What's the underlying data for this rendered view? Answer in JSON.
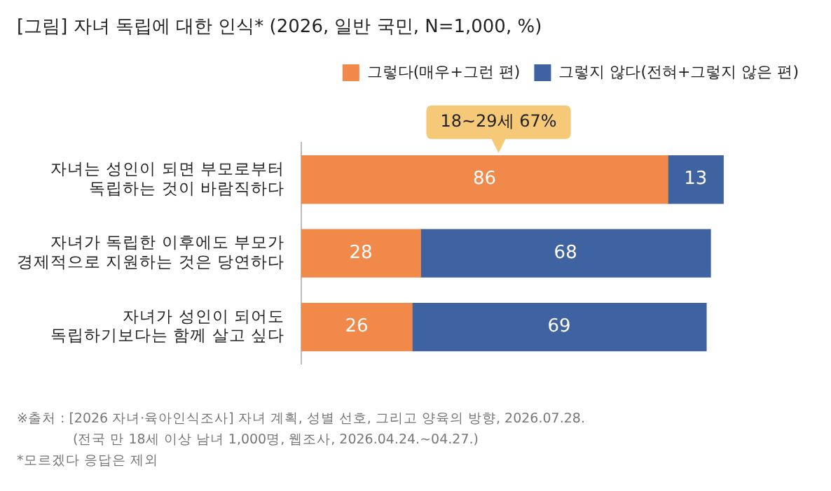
{
  "chart_data": {
    "type": "bar",
    "orientation": "horizontal",
    "stacked": true,
    "title": "[그림] 자녀 독립에 대한 인식* (2026, 일반 국민, N=1,000, %)",
    "categories": [
      "자녀는 성인이 되면 부모로부터\n독립하는 것이 바람직하다",
      "자녀가 독립한 이후에도 부모가\n경제적으로 지원하는 것은 당연하다",
      "자녀가 성인이 되어도\n독립하기보다는 함께 살고 싶다"
    ],
    "series": [
      {
        "name": "그렇다(매우+그런 편)",
        "color": "#f0894a",
        "values": [
          86,
          28,
          26
        ]
      },
      {
        "name": "그렇지 않다(전혀+그렇지 않은 편)",
        "color": "#3f62a0",
        "values": [
          13,
          68,
          69
        ]
      }
    ],
    "data_labels": true,
    "legend": "top right",
    "grid": false,
    "tick_labels": "y",
    "annotations": [
      "18~29세 67%",
      "※출처 : [2026 자녀·육아인식조사] 자녀 계획, 성별 선호, 그리고 양육의 방향, 2026.07.28.",
      "(전국 만 18세 이상 남녀 1,000명, 웹조사, 2026.04.24.~04.27.)",
      "*모르겠다 응답은 제외"
    ]
  }
}
